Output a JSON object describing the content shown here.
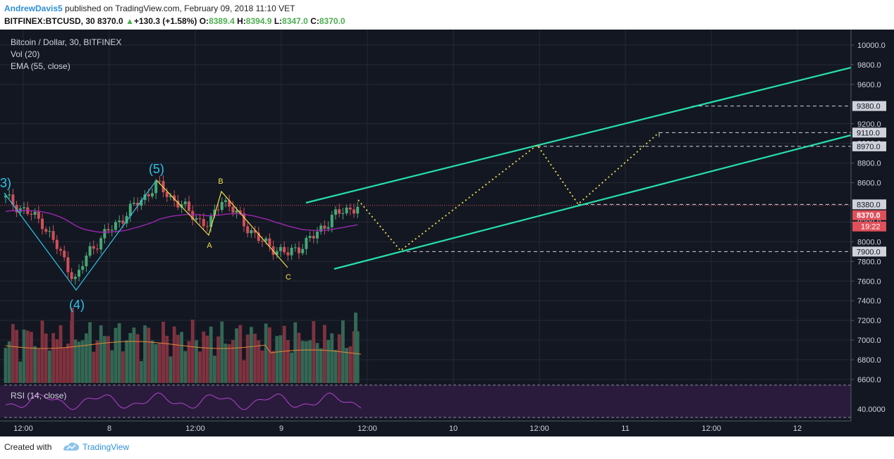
{
  "header": {
    "author": "AndrewDavis5",
    "published_text": "published on TradingView.com, February 09, 2018 11:10 VET",
    "symbol": "BITFINEX:BTCUSD, 30",
    "last": "8370.0",
    "change": "+130.3 (+1.58%)",
    "o_label": "O:",
    "o": "8389.4",
    "h_label": "H:",
    "h": "8394.9",
    "l_label": "L:",
    "l": "8347.0",
    "c_label": "C:",
    "c": "8370.0"
  },
  "legend": {
    "title": "Bitcoin / Dollar, 30, BITFINEX",
    "vol": "Vol (20)",
    "ema": "EMA (55, close)",
    "rsi": "RSI (14, close)"
  },
  "footer": {
    "created_with": "Created with",
    "brand": "TradingView"
  },
  "colors": {
    "background": "#131722",
    "up": "#336854",
    "down": "#7f323f",
    "ema": "#9c27b0",
    "channel": "#26e0a8",
    "wave_yellow": "#f0e24a",
    "wave_blue": "#2ec4e8",
    "rsi_band": "#2a1b3d",
    "price_badge": "#e0505a"
  },
  "chart_data": {
    "type": "candlestick",
    "price_axis": {
      "ticks": [
        10000,
        9800,
        9600,
        9200,
        9000,
        8800,
        8600,
        8200,
        8000,
        7800,
        7600,
        7400,
        7200,
        7000,
        6800,
        6600
      ],
      "ylim": [
        6600,
        10000
      ],
      "level_labels": [
        "9380.0",
        "9110.0",
        "8970.0",
        "8380.0",
        "8370.0",
        "7900.0"
      ],
      "countdown": "19:22"
    },
    "time_axis": [
      "12:00",
      "8",
      "12:00",
      "9",
      "12:00",
      "10",
      "12:00",
      "11",
      "12:00",
      "12"
    ],
    "horizontal_levels": [
      9380,
      9110,
      8970,
      8380,
      7900
    ],
    "last_price": 8370,
    "wave_labels": [
      {
        "label": "3)",
        "price": 8530
      },
      {
        "label": "(4)",
        "price": 7490
      },
      {
        "label": "(5)",
        "price": 8650
      },
      {
        "label": "A",
        "price": 8060
      },
      {
        "label": "B",
        "price": 8510
      },
      {
        "label": "C",
        "price": 7720
      }
    ],
    "rsi": {
      "ticks": [
        "40.0000"
      ]
    }
  }
}
